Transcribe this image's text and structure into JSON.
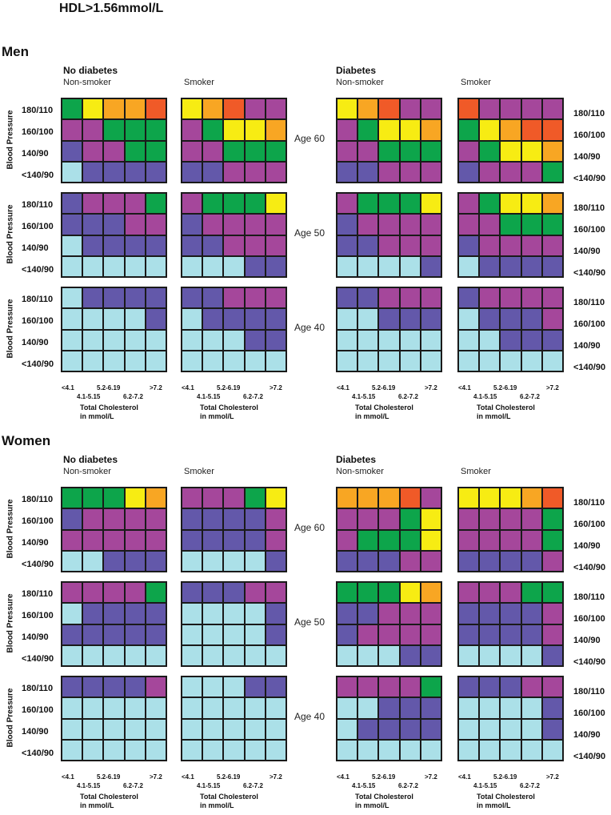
{
  "title": "HDL>1.56mmol/L",
  "sections": [
    {
      "label": "Men",
      "groups": [
        "No diabetes",
        "Diabetes"
      ],
      "subs": [
        "Non-smoker",
        "Smoker",
        "Non-smoker",
        "Smoker"
      ]
    },
    {
      "label": "Women",
      "groups": [
        "No diabetes",
        "Diabetes"
      ],
      "subs": [
        "Non-smoker",
        "Smoker",
        "Non-smoker",
        "Smoker"
      ]
    }
  ],
  "bp_axis_label": "Blood Pressure",
  "bp_labels": [
    "180/110",
    "160/100",
    "140/90",
    "<140/90"
  ],
  "ages": [
    "Age 60",
    "Age 50",
    "Age 40"
  ],
  "chol_ticks_row1": [
    "<4.1",
    "5.2-6.19",
    ">7.2"
  ],
  "chol_ticks_row2": [
    "4.1-5.15",
    "6.2-7.2"
  ],
  "chol_axis_label": [
    "Total Cholesterol",
    "in mmol/L"
  ],
  "colors": {
    "c": "#abe0e8",
    "b": "#6358aa",
    "p": "#a5479b",
    "g": "#0da54b",
    "y": "#f7ec13",
    "o": "#f8a623",
    "r": "#f05a28"
  },
  "chart_data": {
    "type": "heatmap",
    "title": "HDL>1.56mmol/L",
    "rows": [
      "180/110",
      "160/100",
      "140/90",
      "<140/90"
    ],
    "columns": [
      "<4.1",
      "4.1-5.15",
      "5.2-6.19",
      "6.2-7.2",
      ">7.2"
    ],
    "panels": [
      {
        "sex": "Men",
        "diabetes": "No diabetes",
        "smoking": "Non-smoker",
        "age": "Age 60",
        "cells": [
          "gyoor",
          "ppggg",
          "bppgg",
          "cbbbb"
        ]
      },
      {
        "sex": "Men",
        "diabetes": "No diabetes",
        "smoking": "Smoker",
        "age": "Age 60",
        "cells": [
          "yorpp",
          "pgyyo",
          "ppggg",
          "bbppp"
        ]
      },
      {
        "sex": "Men",
        "diabetes": "Diabetes",
        "smoking": "Non-smoker",
        "age": "Age 60",
        "cells": [
          "yorpp",
          "pgyyo",
          "ppggg",
          "bbppp"
        ]
      },
      {
        "sex": "Men",
        "diabetes": "Diabetes",
        "smoking": "Smoker",
        "age": "Age 60",
        "cells": [
          "rpppp",
          "gyorr",
          "pgyyo",
          "bpppg"
        ]
      },
      {
        "sex": "Men",
        "diabetes": "No diabetes",
        "smoking": "Non-smoker",
        "age": "Age 50",
        "cells": [
          "bpppg",
          "bbbpp",
          "cbbbb",
          "ccccc"
        ]
      },
      {
        "sex": "Men",
        "diabetes": "No diabetes",
        "smoking": "Smoker",
        "age": "Age 50",
        "cells": [
          "pgggy",
          "bpppp",
          "bbppp",
          "cccbb"
        ]
      },
      {
        "sex": "Men",
        "diabetes": "Diabetes",
        "smoking": "Non-smoker",
        "age": "Age 50",
        "cells": [
          "pgggy",
          "bpppp",
          "bbppp",
          "ccccb"
        ]
      },
      {
        "sex": "Men",
        "diabetes": "Diabetes",
        "smoking": "Smoker",
        "age": "Age 50",
        "cells": [
          "pgyyo",
          "ppggg",
          "bpppp",
          "cbbbb"
        ]
      },
      {
        "sex": "Men",
        "diabetes": "No diabetes",
        "smoking": "Non-smoker",
        "age": "Age 40",
        "cells": [
          "cbbbb",
          "ccccb",
          "ccccc",
          "ccccc"
        ]
      },
      {
        "sex": "Men",
        "diabetes": "No diabetes",
        "smoking": "Smoker",
        "age": "Age 40",
        "cells": [
          "bbppp",
          "cbbbb",
          "cccbb",
          "ccccc"
        ]
      },
      {
        "sex": "Men",
        "diabetes": "Diabetes",
        "smoking": "Non-smoker",
        "age": "Age 40",
        "cells": [
          "bbppp",
          "ccbbb",
          "ccccc",
          "ccccc"
        ]
      },
      {
        "sex": "Men",
        "diabetes": "Diabetes",
        "smoking": "Smoker",
        "age": "Age 40",
        "cells": [
          "bpppp",
          "cbbbp",
          "ccbbb",
          "ccccc"
        ]
      },
      {
        "sex": "Women",
        "diabetes": "No diabetes",
        "smoking": "Non-smoker",
        "age": "Age 60",
        "cells": [
          "gggyo",
          "bpppp",
          "ppppp",
          "ccbbb"
        ]
      },
      {
        "sex": "Women",
        "diabetes": "No diabetes",
        "smoking": "Smoker",
        "age": "Age 60",
        "cells": [
          "pppgy",
          "bbbbp",
          "bbbbp",
          "ccccb"
        ]
      },
      {
        "sex": "Women",
        "diabetes": "Diabetes",
        "smoking": "Non-smoker",
        "age": "Age 60",
        "cells": [
          "ooorp",
          "pppgy",
          "pgggy",
          "bbbpp"
        ]
      },
      {
        "sex": "Women",
        "diabetes": "Diabetes",
        "smoking": "Smoker",
        "age": "Age 60",
        "cells": [
          "yyyor",
          "ppppg",
          "ppppg",
          "bbbbp"
        ]
      },
      {
        "sex": "Women",
        "diabetes": "No diabetes",
        "smoking": "Non-smoker",
        "age": "Age 50",
        "cells": [
          "ppppg",
          "cbbbb",
          "bbbbb",
          "ccccc"
        ]
      },
      {
        "sex": "Women",
        "diabetes": "No diabetes",
        "smoking": "Smoker",
        "age": "Age 50",
        "cells": [
          "bbbpp",
          "ccccb",
          "ccccb",
          "ccccc"
        ]
      },
      {
        "sex": "Women",
        "diabetes": "Diabetes",
        "smoking": "Non-smoker",
        "age": "Age 50",
        "cells": [
          "gggyo",
          "bbppp",
          "bpppp",
          "cccbb"
        ]
      },
      {
        "sex": "Women",
        "diabetes": "Diabetes",
        "smoking": "Smoker",
        "age": "Age 50",
        "cells": [
          "pppgg",
          "bbbbp",
          "bbbbp",
          "ccccb"
        ]
      },
      {
        "sex": "Women",
        "diabetes": "No diabetes",
        "smoking": "Non-smoker",
        "age": "Age 40",
        "cells": [
          "bbbbp",
          "ccccc",
          "ccccc",
          "ccccc"
        ]
      },
      {
        "sex": "Women",
        "diabetes": "No diabetes",
        "smoking": "Smoker",
        "age": "Age 40",
        "cells": [
          "cccbb",
          "ccccc",
          "ccccc",
          "ccccc"
        ]
      },
      {
        "sex": "Women",
        "diabetes": "Diabetes",
        "smoking": "Non-smoker",
        "age": "Age 40",
        "cells": [
          "ppppg",
          "ccbbb",
          "cbbbb",
          "ccccc"
        ]
      },
      {
        "sex": "Women",
        "diabetes": "Diabetes",
        "smoking": "Smoker",
        "age": "Age 40",
        "cells": [
          "bbbpp",
          "ccccb",
          "ccccb",
          "ccccc"
        ]
      }
    ]
  }
}
